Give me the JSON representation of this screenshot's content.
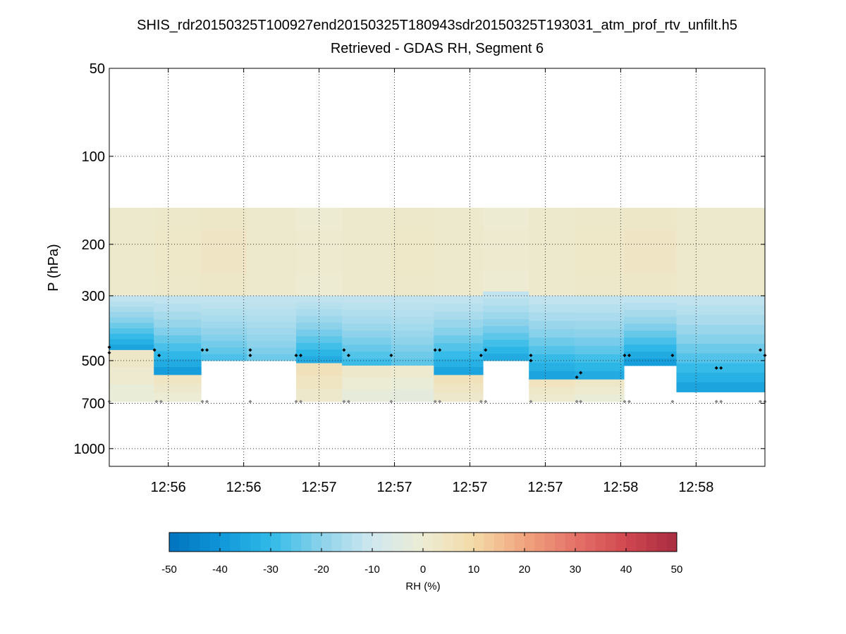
{
  "chart_data": {
    "type": "heatmap",
    "title": "SHIS_rdr20150325T100927end20150325T180943sdr20150325T193031_atm_prof_rtv_unfilt.h5",
    "subtitle": "Retrieved - GDAS RH, Segment 6",
    "ylabel": "P (hPa)",
    "y_scale": "log",
    "y_reversed": true,
    "ylim": [
      50,
      1150
    ],
    "yticks": [
      50,
      100,
      200,
      300,
      500,
      700,
      1000
    ],
    "ytick_labels": [
      "50",
      "100",
      "200",
      "300",
      "500",
      "700",
      "1000"
    ],
    "xlim": [
      0,
      100
    ],
    "xticks": [
      9,
      20.5,
      32,
      43.5,
      55,
      66.5,
      78,
      89.5
    ],
    "xtick_labels": [
      "12:56",
      "12:56",
      "12:57",
      "12:57",
      "12:57",
      "12:57",
      "12:58",
      "12:58"
    ],
    "grid": true,
    "colorbar": {
      "label": "RH (%)",
      "min": -50,
      "max": 50,
      "ticks": [
        -50,
        -40,
        -30,
        -20,
        -10,
        0,
        10,
        20,
        30,
        40,
        50
      ],
      "tick_labels": [
        "-50",
        "-40",
        "-30",
        "-20",
        "-10",
        "0",
        "10",
        "20",
        "30",
        "40",
        "50"
      ]
    },
    "columns": [
      {
        "x0": 0,
        "x1": 6.8,
        "top": 150,
        "upper_mid": 300,
        "upper_val": 2,
        "moist_top": 300,
        "moist_bottom": 460,
        "moist_min": -38,
        "bottom": 690,
        "lower_val": 3
      },
      {
        "x0": 6.8,
        "x1": 14,
        "top": 150,
        "upper_mid": 310,
        "upper_val": 3,
        "moist_top": 300,
        "moist_bottom": 560,
        "moist_min": -40,
        "bottom": 690,
        "lower_val": 4
      },
      {
        "x0": 14,
        "x1": 21,
        "top": 150,
        "upper_mid": 280,
        "upper_val": 4,
        "moist_top": 300,
        "moist_bottom": 500,
        "moist_min": -28,
        "bottom": 500,
        "lower_val": 0
      },
      {
        "x0": 21,
        "x1": 28.5,
        "top": 150,
        "upper_mid": 270,
        "upper_val": 2,
        "moist_top": 300,
        "moist_bottom": 500,
        "moist_min": -24,
        "bottom": 500,
        "lower_val": 0
      },
      {
        "x0": 28.5,
        "x1": 35.5,
        "top": 150,
        "upper_mid": 290,
        "upper_val": 1,
        "moist_top": 300,
        "moist_bottom": 510,
        "moist_min": -36,
        "bottom": 690,
        "lower_val": 6
      },
      {
        "x0": 35.5,
        "x1": 43,
        "top": 150,
        "upper_mid": 300,
        "upper_val": 2,
        "moist_top": 300,
        "moist_bottom": 520,
        "moist_min": -30,
        "bottom": 690,
        "lower_val": 2
      },
      {
        "x0": 43,
        "x1": 49.5,
        "top": 150,
        "upper_mid": 280,
        "upper_val": 3,
        "moist_top": 300,
        "moist_bottom": 520,
        "moist_min": -26,
        "bottom": 690,
        "lower_val": 1
      },
      {
        "x0": 49.5,
        "x1": 57,
        "top": 150,
        "upper_mid": 300,
        "upper_val": 2,
        "moist_top": 300,
        "moist_bottom": 560,
        "moist_min": -38,
        "bottom": 690,
        "lower_val": 6
      },
      {
        "x0": 57,
        "x1": 64,
        "top": 150,
        "upper_mid": 270,
        "upper_val": 1,
        "moist_top": 290,
        "moist_bottom": 500,
        "moist_min": -36,
        "bottom": 500,
        "lower_val": 0
      },
      {
        "x0": 64,
        "x1": 71,
        "top": 150,
        "upper_mid": 290,
        "upper_val": 2,
        "moist_top": 300,
        "moist_bottom": 580,
        "moist_min": -38,
        "bottom": 690,
        "lower_val": 5
      },
      {
        "x0": 71,
        "x1": 78.5,
        "top": 150,
        "upper_mid": 290,
        "upper_val": 3,
        "moist_top": 300,
        "moist_bottom": 580,
        "moist_min": -36,
        "bottom": 690,
        "lower_val": 3
      },
      {
        "x0": 78.5,
        "x1": 86.5,
        "top": 150,
        "upper_mid": 300,
        "upper_val": 4,
        "moist_top": 300,
        "moist_bottom": 520,
        "moist_min": -40,
        "bottom": 520,
        "lower_val": 0
      },
      {
        "x0": 86.5,
        "x1": 100,
        "top": 150,
        "upper_mid": 300,
        "upper_val": 2,
        "moist_top": 300,
        "moist_bottom": 640,
        "moist_min": -38,
        "bottom": 640,
        "lower_val": 2
      }
    ],
    "black_markers": [
      {
        "x": 0,
        "p": 450
      },
      {
        "x": 0,
        "p": 470
      },
      {
        "x": 6.9,
        "p": 460
      },
      {
        "x": 7.6,
        "p": 480
      },
      {
        "x": 14.2,
        "p": 460
      },
      {
        "x": 14.9,
        "p": 460
      },
      {
        "x": 21.5,
        "p": 460
      },
      {
        "x": 21.5,
        "p": 480
      },
      {
        "x": 28.5,
        "p": 480
      },
      {
        "x": 29.2,
        "p": 480
      },
      {
        "x": 35.8,
        "p": 460
      },
      {
        "x": 36.5,
        "p": 480
      },
      {
        "x": 43,
        "p": 480
      },
      {
        "x": 49.7,
        "p": 460
      },
      {
        "x": 50.4,
        "p": 460
      },
      {
        "x": 56.7,
        "p": 480
      },
      {
        "x": 57.4,
        "p": 460
      },
      {
        "x": 64.3,
        "p": 480
      },
      {
        "x": 64.3,
        "p": 500
      },
      {
        "x": 71.3,
        "p": 570
      },
      {
        "x": 71.9,
        "p": 550
      },
      {
        "x": 78.6,
        "p": 480
      },
      {
        "x": 79.3,
        "p": 480
      },
      {
        "x": 85.9,
        "p": 480
      },
      {
        "x": 92.6,
        "p": 530
      },
      {
        "x": 93.3,
        "p": 530
      },
      {
        "x": 99.3,
        "p": 460
      },
      {
        "x": 100,
        "p": 480
      }
    ],
    "gray_markers": [
      {
        "x": 0,
        "p": 690
      },
      {
        "x": 7.2,
        "p": 690
      },
      {
        "x": 7.9,
        "p": 690
      },
      {
        "x": 14.2,
        "p": 690
      },
      {
        "x": 14.9,
        "p": 690
      },
      {
        "x": 21.5,
        "p": 690
      },
      {
        "x": 28.5,
        "p": 690
      },
      {
        "x": 29.2,
        "p": 690
      },
      {
        "x": 35.8,
        "p": 690
      },
      {
        "x": 36.5,
        "p": 690
      },
      {
        "x": 43,
        "p": 690
      },
      {
        "x": 49.7,
        "p": 690
      },
      {
        "x": 50.4,
        "p": 690
      },
      {
        "x": 56.7,
        "p": 690
      },
      {
        "x": 57.4,
        "p": 690
      },
      {
        "x": 64.3,
        "p": 690
      },
      {
        "x": 71.3,
        "p": 690
      },
      {
        "x": 71.9,
        "p": 690
      },
      {
        "x": 78.6,
        "p": 690
      },
      {
        "x": 79.3,
        "p": 690
      },
      {
        "x": 85.9,
        "p": 690
      },
      {
        "x": 92.6,
        "p": 690
      },
      {
        "x": 93.3,
        "p": 690
      },
      {
        "x": 99.3,
        "p": 690
      },
      {
        "x": 100,
        "p": 690
      }
    ]
  }
}
